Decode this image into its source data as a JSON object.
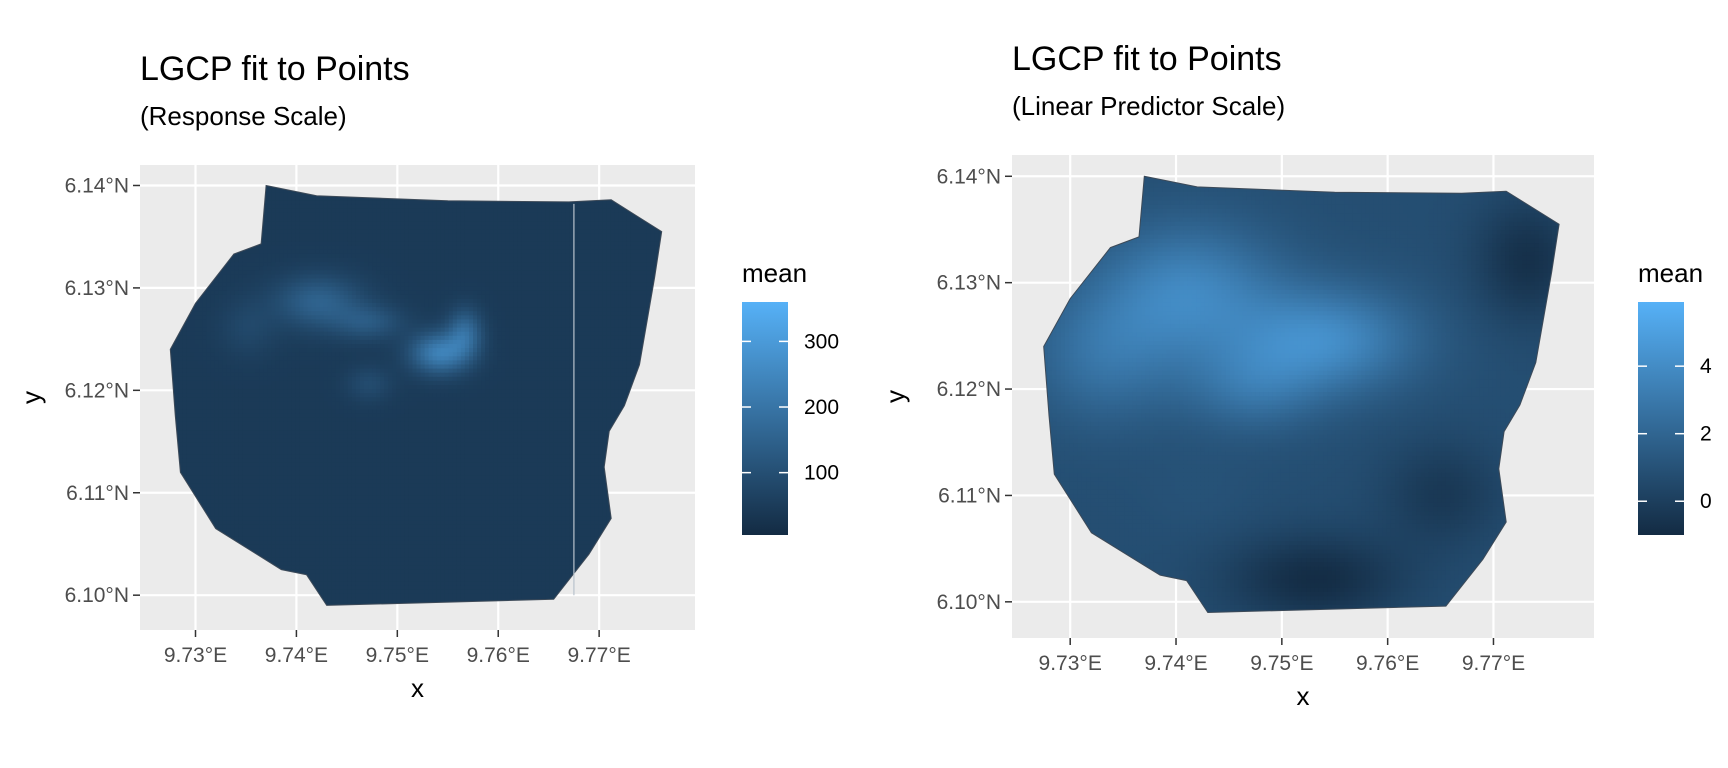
{
  "chart_data": [
    {
      "type": "heatmap",
      "title": "LGCP fit to Points",
      "subtitle": "(Response Scale)",
      "xlabel": "x",
      "ylabel": "y",
      "xlim": [
        9.7245,
        9.7795
      ],
      "ylim": [
        6.0966,
        6.142
      ],
      "x_ticks": [
        9.73,
        9.74,
        9.75,
        9.76,
        9.77
      ],
      "x_tick_labels": [
        "9.73°E",
        "9.74°E",
        "9.75°E",
        "9.76°E",
        "9.77°E"
      ],
      "y_ticks": [
        6.1,
        6.11,
        6.12,
        6.13,
        6.14
      ],
      "y_tick_labels": [
        "6.10°N",
        "6.11°N",
        "6.12°N",
        "6.13°N",
        "6.14°N"
      ],
      "grid": true,
      "legend": {
        "title": "mean",
        "position": "right",
        "range": [
          5,
          360
        ],
        "ticks": [
          100,
          200,
          300
        ],
        "tick_labels": [
          "100",
          "200",
          "300"
        ],
        "low_color": "#132B43",
        "high_color": "#56B1F7"
      },
      "boundary": [
        [
          9.737,
          6.14
        ],
        [
          9.742,
          6.139
        ],
        [
          9.755,
          6.1385
        ],
        [
          9.767,
          6.1384
        ],
        [
          9.7712,
          6.1386
        ],
        [
          9.7762,
          6.1355
        ],
        [
          9.7755,
          6.131
        ],
        [
          9.774,
          6.1225
        ],
        [
          9.7725,
          6.1185
        ],
        [
          9.771,
          6.116
        ],
        [
          9.7705,
          6.1125
        ],
        [
          9.7712,
          6.1075
        ],
        [
          9.769,
          6.104
        ],
        [
          9.7655,
          6.0996
        ],
        [
          9.743,
          6.099
        ],
        [
          9.741,
          6.102
        ],
        [
          9.7385,
          6.1025
        ],
        [
          9.732,
          6.1065
        ],
        [
          9.7285,
          6.112
        ],
        [
          9.728,
          6.1175
        ],
        [
          9.7275,
          6.124
        ],
        [
          9.73,
          6.1285
        ],
        [
          9.7338,
          6.1333
        ],
        [
          9.7365,
          6.1343
        ]
      ],
      "vertical_seam_x": 9.7675,
      "background_value": 45,
      "hotspots": [
        {
          "x": 9.754,
          "y": 6.1235,
          "sx": 0.002,
          "sy": 0.0014,
          "peak": 230
        },
        {
          "x": 9.7565,
          "y": 6.1255,
          "sx": 0.0012,
          "sy": 0.0016,
          "peak": 170
        },
        {
          "x": 9.742,
          "y": 6.1285,
          "sx": 0.003,
          "sy": 0.0018,
          "peak": 150
        },
        {
          "x": 9.747,
          "y": 6.1265,
          "sx": 0.0024,
          "sy": 0.0012,
          "peak": 120
        },
        {
          "x": 9.735,
          "y": 6.126,
          "sx": 0.002,
          "sy": 0.002,
          "peak": 80
        },
        {
          "x": 9.747,
          "y": 6.1205,
          "sx": 0.0016,
          "sy": 0.0012,
          "peak": 90
        }
      ]
    },
    {
      "type": "heatmap",
      "title": "LGCP fit to Points",
      "subtitle": "(Linear Predictor Scale)",
      "xlabel": "x",
      "ylabel": "y",
      "xlim": [
        9.7245,
        9.7795
      ],
      "ylim": [
        6.0966,
        6.142
      ],
      "x_ticks": [
        9.73,
        9.74,
        9.75,
        9.76,
        9.77
      ],
      "x_tick_labels": [
        "9.73°E",
        "9.74°E",
        "9.75°E",
        "9.76°E",
        "9.77°E"
      ],
      "y_ticks": [
        6.1,
        6.11,
        6.12,
        6.13,
        6.14
      ],
      "y_tick_labels": [
        "6.10°N",
        "6.11°N",
        "6.12°N",
        "6.13°N",
        "6.14°N"
      ],
      "grid": true,
      "legend": {
        "title": "mean",
        "position": "right",
        "range": [
          -1,
          5.9
        ],
        "ticks": [
          0,
          2,
          4
        ],
        "tick_labels": [
          "0",
          "2",
          "4"
        ],
        "low_color": "#132B43",
        "high_color": "#56B1F7"
      },
      "boundary": [
        [
          9.737,
          6.14
        ],
        [
          9.742,
          6.139
        ],
        [
          9.755,
          6.1385
        ],
        [
          9.767,
          6.1384
        ],
        [
          9.7712,
          6.1386
        ],
        [
          9.7762,
          6.1355
        ],
        [
          9.7755,
          6.131
        ],
        [
          9.774,
          6.1225
        ],
        [
          9.7725,
          6.1185
        ],
        [
          9.771,
          6.116
        ],
        [
          9.7705,
          6.1125
        ],
        [
          9.7712,
          6.1075
        ],
        [
          9.769,
          6.104
        ],
        [
          9.7655,
          6.0996
        ],
        [
          9.743,
          6.099
        ],
        [
          9.741,
          6.102
        ],
        [
          9.7385,
          6.1025
        ],
        [
          9.732,
          6.1065
        ],
        [
          9.7285,
          6.112
        ],
        [
          9.728,
          6.1175
        ],
        [
          9.7275,
          6.124
        ],
        [
          9.73,
          6.1285
        ],
        [
          9.7338,
          6.1333
        ],
        [
          9.7365,
          6.1343
        ]
      ],
      "background_value": 0.8,
      "hotspots": [
        {
          "x": 9.754,
          "y": 6.1245,
          "sx": 0.006,
          "sy": 0.0035,
          "peak": 3.9
        },
        {
          "x": 9.741,
          "y": 6.129,
          "sx": 0.006,
          "sy": 0.0045,
          "peak": 3.6
        },
        {
          "x": 9.733,
          "y": 6.123,
          "sx": 0.005,
          "sy": 0.0045,
          "peak": 2.6
        },
        {
          "x": 9.747,
          "y": 6.12,
          "sx": 0.0045,
          "sy": 0.003,
          "peak": 2.4
        },
        {
          "x": 9.742,
          "y": 6.11,
          "sx": 0.004,
          "sy": 0.003,
          "peak": 1.0
        },
        {
          "x": 9.753,
          "y": 6.102,
          "sx": 0.006,
          "sy": 0.003,
          "peak": -0.9
        },
        {
          "x": 9.773,
          "y": 6.132,
          "sx": 0.0035,
          "sy": 0.004,
          "peak": -0.7
        },
        {
          "x": 9.765,
          "y": 6.11,
          "sx": 0.004,
          "sy": 0.0035,
          "peak": -0.3
        }
      ]
    }
  ]
}
